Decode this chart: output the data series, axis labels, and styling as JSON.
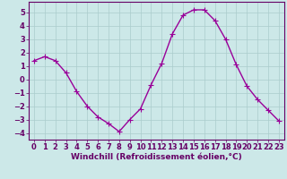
{
  "x": [
    0,
    1,
    2,
    3,
    4,
    5,
    6,
    7,
    8,
    9,
    10,
    11,
    12,
    13,
    14,
    15,
    16,
    17,
    18,
    19,
    20,
    21,
    22,
    23
  ],
  "y": [
    1.4,
    1.7,
    1.4,
    0.5,
    -0.9,
    -2.0,
    -2.8,
    -3.3,
    -3.9,
    -3.0,
    -2.2,
    -0.4,
    1.2,
    3.4,
    4.8,
    5.2,
    5.2,
    4.4,
    3.0,
    1.1,
    -0.5,
    -1.5,
    -2.3,
    -3.1
  ],
  "line_color": "#990099",
  "marker": "+",
  "marker_size": 4,
  "bg_color": "#cce8e8",
  "grid_color": "#aacccc",
  "xlabel": "Windchill (Refroidissement éolien,°C)",
  "xlabel_fontsize": 6.5,
  "tick_fontsize": 6.0,
  "ylim": [
    -4.5,
    5.8
  ],
  "yticks": [
    -4,
    -3,
    -2,
    -1,
    0,
    1,
    2,
    3,
    4,
    5
  ],
  "xlim": [
    -0.5,
    23.5
  ],
  "xticks": [
    0,
    1,
    2,
    3,
    4,
    5,
    6,
    7,
    8,
    9,
    10,
    11,
    12,
    13,
    14,
    15,
    16,
    17,
    18,
    19,
    20,
    21,
    22,
    23
  ],
  "linewidth": 1.0,
  "axis_color": "#660066",
  "spine_color": "#660066"
}
